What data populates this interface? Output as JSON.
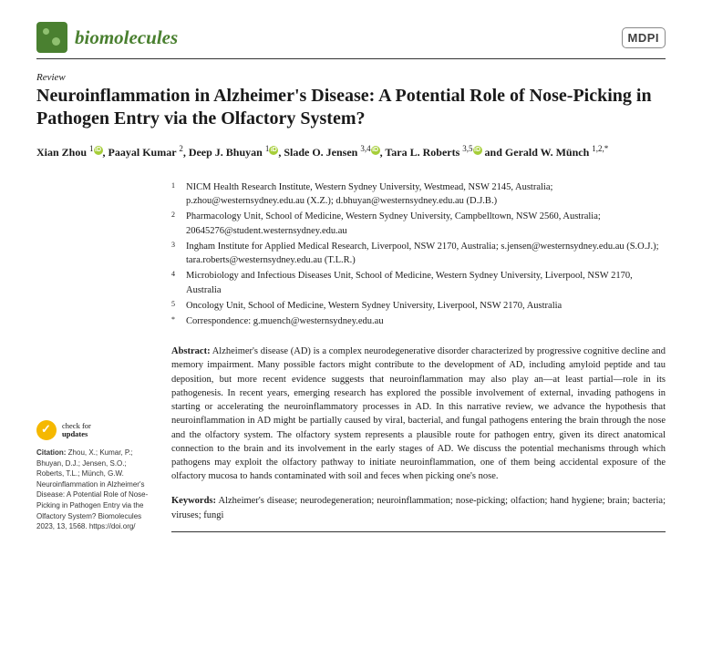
{
  "journal": {
    "name": "biomolecules",
    "publisher": "MDPI"
  },
  "article_type": "Review",
  "title": "Neuroinflammation in Alzheimer's Disease: A Potential Role of Nose-Picking in Pathogen Entry via the Olfactory System?",
  "authors": [
    {
      "name": "Xian Zhou",
      "aff": "1",
      "orcid": true
    },
    {
      "name": "Paayal Kumar",
      "aff": "2",
      "orcid": false
    },
    {
      "name": "Deep J. Bhuyan",
      "aff": "1",
      "orcid": true
    },
    {
      "name": "Slade O. Jensen",
      "aff": "3,4",
      "orcid": true
    },
    {
      "name": "Tara L. Roberts",
      "aff": "3,5",
      "orcid": true
    },
    {
      "name": "Gerald W. Münch",
      "aff": "1,2,*",
      "orcid": false
    }
  ],
  "joins": [
    ", ",
    ", ",
    ", ",
    ", ",
    " and "
  ],
  "affiliations": [
    {
      "n": "1",
      "text": "NICM Health Research Institute, Western Sydney University, Westmead, NSW 2145, Australia; p.zhou@westernsydney.edu.au (X.Z.); d.bhuyan@westernsydney.edu.au (D.J.B.)"
    },
    {
      "n": "2",
      "text": "Pharmacology Unit, School of Medicine, Western Sydney University, Campbelltown, NSW 2560, Australia; 20645276@student.westernsydney.edu.au"
    },
    {
      "n": "3",
      "text": "Ingham Institute for Applied Medical Research, Liverpool, NSW 2170, Australia; s.jensen@westernsydney.edu.au (S.O.J.); tara.roberts@westernsydney.edu.au (T.L.R.)"
    },
    {
      "n": "4",
      "text": "Microbiology and Infectious Diseases Unit, School of Medicine, Western Sydney University, Liverpool, NSW 2170, Australia"
    },
    {
      "n": "5",
      "text": "Oncology Unit, School of Medicine, Western Sydney University, Liverpool, NSW 2170, Australia"
    },
    {
      "n": "*",
      "text": "Correspondence: g.muench@westernsydney.edu.au"
    }
  ],
  "abstract_label": "Abstract:",
  "abstract": " Alzheimer's disease (AD) is a complex neurodegenerative disorder characterized by progressive cognitive decline and memory impairment. Many possible factors might contribute to the development of AD, including amyloid peptide and tau deposition, but more recent evidence suggests that neuroinflammation may also play an—at least partial—role in its pathogenesis. In recent years, emerging research has explored the possible involvement of external, invading pathogens in starting or accelerating the neuroinflammatory processes in AD. In this narrative review, we advance the hypothesis that neuroinflammation in AD might be partially caused by viral, bacterial, and fungal pathogens entering the brain through the nose and the olfactory system. The olfactory system represents a plausible route for pathogen entry, given its direct anatomical connection to the brain and its involvement in the early stages of AD. We discuss the potential mechanisms through which pathogens may exploit the olfactory pathway to initiate neuroinflammation, one of them being accidental exposure of the olfactory mucosa to hands contaminated with soil and feces when picking one's nose.",
  "keywords_label": "Keywords:",
  "keywords": " Alzheimer's disease; neurodegeneration; neuroinflammation; nose-picking; olfaction; hand hygiene; brain; bacteria; viruses; fungi",
  "check_updates": {
    "line1": "check for",
    "line2": "updates"
  },
  "citation_label": "Citation:",
  "citation": " Zhou, X.; Kumar, P.; Bhuyan, D.J.; Jensen, S.O.; Roberts, T.L.; Münch, G.W. Neuroinflammation in Alzheimer's Disease: A Potential Role of Nose-Picking in Pathogen Entry via the Olfactory System? Biomolecules 2023, 13, 1568. https://doi.org/",
  "colors": {
    "brand_green": "#4a8030",
    "orcid_green": "#a6ce39",
    "check_yellow": "#f5b800",
    "text": "#1a1a1a",
    "background": "#ffffff"
  },
  "typography": {
    "title_fontsize": 20,
    "body_fontsize": 10.5,
    "author_fontsize": 12,
    "citation_fontsize": 8
  }
}
